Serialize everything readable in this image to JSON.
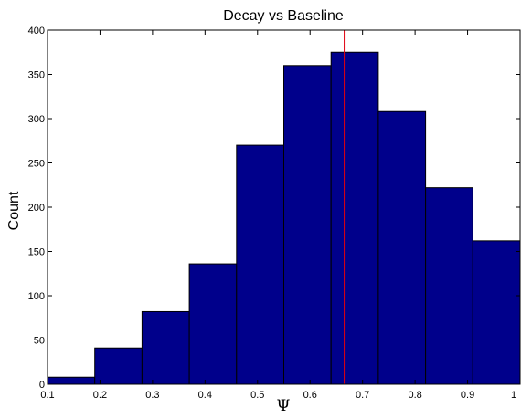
{
  "chart_data": {
    "type": "bar",
    "title": "Decay vs Baseline",
    "xlabel": "Ψ",
    "ylabel": "Count",
    "xlim": [
      0.1,
      1.0
    ],
    "ylim": [
      0,
      400
    ],
    "bins": [
      {
        "x0": 0.1,
        "x1": 0.19,
        "count": 8
      },
      {
        "x0": 0.19,
        "x1": 0.28,
        "count": 41
      },
      {
        "x0": 0.28,
        "x1": 0.37,
        "count": 82
      },
      {
        "x0": 0.37,
        "x1": 0.46,
        "count": 136
      },
      {
        "x0": 0.46,
        "x1": 0.55,
        "count": 270
      },
      {
        "x0": 0.55,
        "x1": 0.64,
        "count": 360
      },
      {
        "x0": 0.64,
        "x1": 0.73,
        "count": 375
      },
      {
        "x0": 0.73,
        "x1": 0.82,
        "count": 308
      },
      {
        "x0": 0.82,
        "x1": 0.91,
        "count": 222
      },
      {
        "x0": 0.91,
        "x1": 1.0,
        "count": 162
      }
    ],
    "reference_line": {
      "x": 0.665,
      "color": "#e0000f"
    },
    "bar_color": "#00008b",
    "x_ticks": [
      "0.1",
      "0.2",
      "0.3",
      "0.4",
      "0.5",
      "0.6",
      "0.7",
      "0.8",
      "0.9",
      "1"
    ],
    "y_ticks": [
      "0",
      "50",
      "100",
      "150",
      "200",
      "250",
      "300",
      "350",
      "400"
    ],
    "grid": false,
    "legend": "none"
  }
}
